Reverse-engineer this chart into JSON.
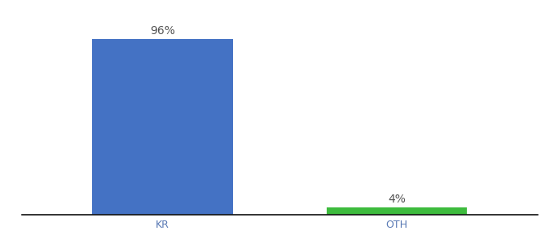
{
  "categories": [
    "KR",
    "OTH"
  ],
  "values": [
    96,
    4
  ],
  "bar_colors": [
    "#4472c4",
    "#3dbb3d"
  ],
  "label_texts": [
    "96%",
    "4%"
  ],
  "background_color": "#ffffff",
  "ylim": [
    0,
    108
  ],
  "bar_width": 0.6,
  "label_fontsize": 10,
  "tick_fontsize": 9,
  "tick_color": "#5a7ab5",
  "spine_color": "#111111",
  "label_color": "#555555"
}
